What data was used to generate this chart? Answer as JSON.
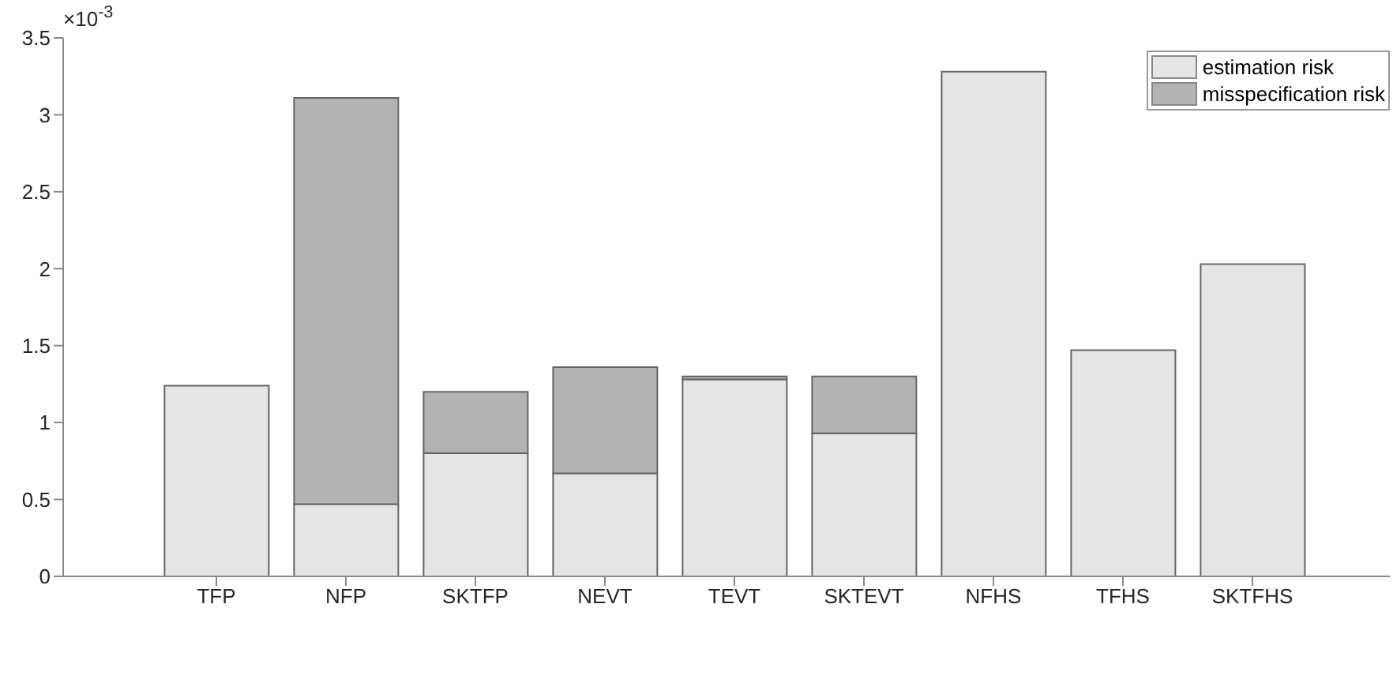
{
  "chart_data": {
    "type": "bar",
    "stacked": true,
    "categories": [
      "TFP",
      "NFP",
      "SKTFP",
      "NEVT",
      "TEVT",
      "SKTEVT",
      "NFHS",
      "TFHS",
      "SKTFHS"
    ],
    "series": [
      {
        "name": "estimation risk",
        "color": "#e5e5e5",
        "values": [
          1.24,
          0.47,
          0.8,
          0.67,
          1.28,
          0.93,
          3.28,
          1.47,
          2.03
        ]
      },
      {
        "name": "misspecification risk",
        "color": "#b3b3b3",
        "values": [
          0,
          2.64,
          0.4,
          0.69,
          0.02,
          0.37,
          0,
          0,
          0
        ]
      }
    ],
    "ylim": [
      0,
      3.5
    ],
    "yticks": [
      0,
      0.5,
      1,
      1.5,
      2,
      2.5,
      3,
      3.5
    ],
    "annotations": [
      "×10$^{-3}$"
    ],
    "legend": "top right",
    "grid": false
  }
}
